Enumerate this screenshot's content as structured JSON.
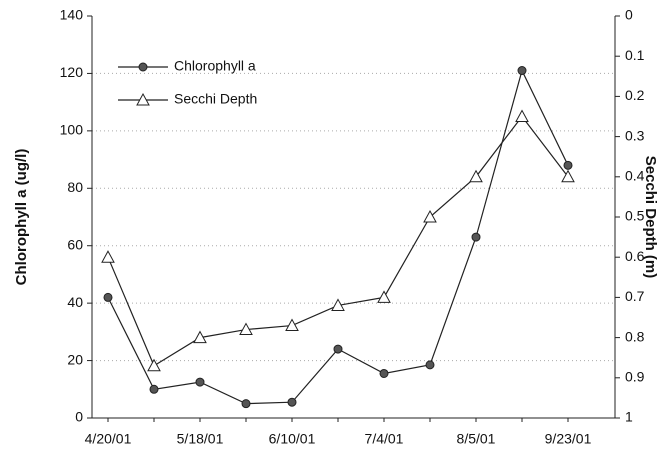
{
  "chart_data": {
    "type": "line",
    "categories": [
      "4/20/01",
      null,
      "5/18/01",
      null,
      "6/10/01",
      null,
      "7/4/01",
      null,
      "8/5/01",
      null,
      "9/23/01"
    ],
    "y_label": "Chlorophyll a (ug/l)",
    "y2_label": "Secchi Depth (m)",
    "ylim": [
      0,
      140
    ],
    "yticks": [
      0,
      20,
      40,
      60,
      80,
      100,
      120,
      140
    ],
    "y2lim": [
      0,
      1
    ],
    "y2_inverted": true,
    "y2ticks": [
      0,
      0.1,
      0.2,
      0.3,
      0.4,
      0.5,
      0.6,
      0.7,
      0.8,
      0.9,
      1
    ],
    "grid": true,
    "legend": "upper left",
    "series": [
      {
        "name": "Chlorophyll a",
        "color": "#222222",
        "marker": "circle",
        "axis": "y",
        "values": [
          42,
          10,
          12.5,
          5,
          5.5,
          24,
          15.5,
          18.5,
          63,
          121,
          88
        ]
      },
      {
        "name": "Secchi Depth",
        "color": "#222222",
        "marker": "triangle",
        "axis": "y2",
        "values": [
          0.6,
          0.87,
          0.8,
          0.78,
          0.77,
          0.72,
          0.7,
          0.5,
          0.4,
          0.25,
          0.4
        ]
      }
    ]
  }
}
